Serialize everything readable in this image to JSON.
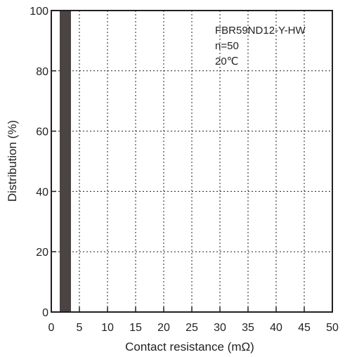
{
  "chart_data": {
    "type": "bar",
    "xlabel": "Contact resistance (mΩ)",
    "ylabel": "Distribution (%)",
    "xlim": [
      0,
      50
    ],
    "ylim": [
      0,
      100
    ],
    "x_ticks": [
      "0",
      "5",
      "10",
      "15",
      "20",
      "25",
      "30",
      "35",
      "40",
      "45",
      "50"
    ],
    "y_ticks": [
      "0",
      "20",
      "40",
      "60",
      "80",
      "100"
    ],
    "grid": true,
    "bins": [
      {
        "from": 1.5,
        "to": 3.5,
        "value": 100
      }
    ],
    "bar_color": "#4a4443",
    "annotations": [
      "FBR59ND12-Y-HW",
      "n=50",
      "20℃"
    ]
  }
}
